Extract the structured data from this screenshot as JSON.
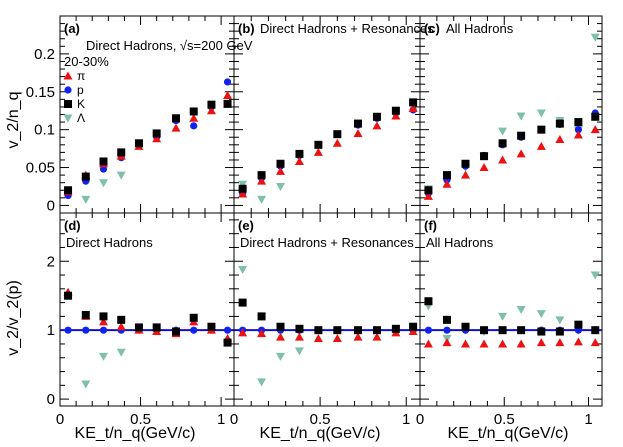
{
  "chart_data": {
    "type": "scatter",
    "title": "Direct Hadrons, √s=200 GeV",
    "centrality": "20-30%",
    "xlabel": "KE_t/n_q(GeV/c)",
    "ylabel_top": "v_2/n_q",
    "ylabel_bottom": "v_2/v_2(p)",
    "xlim": [
      0,
      1.08
    ],
    "ylim_top": [
      -0.01,
      0.25
    ],
    "ylim_bottom": [
      -0.1,
      2.7
    ],
    "xticks": [
      "0",
      "0.5",
      "1"
    ],
    "yticks_top": [
      "0",
      "0.05",
      "0.1",
      "0.15",
      "0.2"
    ],
    "yticks_bottom": [
      "0",
      "1",
      "2"
    ],
    "reference_line": 1,
    "colors": {
      "pi": "#ee1111",
      "p": "#1122ee",
      "K": "#000000",
      "Lambda": "#7fbfae",
      "refline": "#1010cc"
    },
    "legend": [
      {
        "key": "pi",
        "label": "π",
        "marker": "triangle"
      },
      {
        "key": "p",
        "label": "p",
        "marker": "circle"
      },
      {
        "key": "K",
        "label": "K",
        "marker": "square"
      },
      {
        "key": "Lambda",
        "label": "Λ",
        "marker": "triangle-down"
      }
    ],
    "panels": [
      {
        "label": "(a)",
        "title": "",
        "row": "top",
        "col": 0,
        "series": {
          "pi": {
            "x": [
              0.05,
              0.16,
              0.27,
              0.38,
              0.49,
              0.6,
              0.72,
              0.83,
              0.94,
              1.04
            ],
            "y": [
              0.018,
              0.04,
              0.055,
              0.065,
              0.078,
              0.088,
              0.102,
              0.115,
              0.125,
              0.145
            ]
          },
          "p": {
            "x": [
              0.05,
              0.16,
              0.27,
              0.38,
              0.49,
              0.6,
              0.72,
              0.83,
              0.94,
              1.04
            ],
            "y": [
              0.013,
              0.032,
              0.048,
              0.063,
              0.082,
              0.09,
              0.112,
              0.105,
              0.13,
              0.163
            ]
          },
          "K": {
            "x": [
              0.05,
              0.16,
              0.27,
              0.38,
              0.49,
              0.6,
              0.72,
              0.83,
              0.94,
              1.04
            ],
            "y": [
              0.02,
              0.038,
              0.058,
              0.07,
              0.082,
              0.095,
              0.115,
              0.124,
              0.133,
              0.134
            ]
          },
          "Lambda": {
            "x": [
              0.16,
              0.27,
              0.38
            ],
            "y": [
              0.008,
              0.03,
              0.04
            ]
          }
        }
      },
      {
        "label": "(b)",
        "title": "Direct Hadrons + Resonances",
        "row": "top",
        "col": 1,
        "series": {
          "pi": {
            "x": [
              0.05,
              0.16,
              0.27,
              0.38,
              0.49,
              0.6,
              0.72,
              0.83,
              0.94,
              1.04
            ],
            "y": [
              0.015,
              0.032,
              0.045,
              0.058,
              0.07,
              0.082,
              0.095,
              0.105,
              0.118,
              0.128
            ]
          },
          "p": {
            "x": [
              0.05,
              0.16,
              0.27,
              0.38,
              0.49,
              0.6,
              0.72,
              0.83,
              0.94,
              1.04
            ],
            "y": [
              0.016,
              0.036,
              0.052,
              0.066,
              0.08,
              0.094,
              0.106,
              0.115,
              0.122,
              0.126
            ]
          },
          "K": {
            "x": [
              0.05,
              0.16,
              0.27,
              0.38,
              0.49,
              0.6,
              0.72,
              0.83,
              0.94,
              1.04
            ],
            "y": [
              0.022,
              0.04,
              0.055,
              0.068,
              0.08,
              0.094,
              0.108,
              0.117,
              0.125,
              0.136
            ]
          },
          "Lambda": {
            "x": [
              0.05,
              0.16,
              0.27
            ],
            "y": [
              0.028,
              0.008,
              0.025
            ]
          }
        }
      },
      {
        "label": "(c)",
        "title": "All Hadrons",
        "row": "top",
        "col": 2,
        "series": {
          "pi": {
            "x": [
              0.05,
              0.16,
              0.27,
              0.38,
              0.49,
              0.6,
              0.72,
              0.83,
              0.94,
              1.04
            ],
            "y": [
              0.012,
              0.028,
              0.04,
              0.05,
              0.06,
              0.068,
              0.078,
              0.087,
              0.093,
              0.1
            ]
          },
          "p": {
            "x": [
              0.05,
              0.16,
              0.27,
              0.38,
              0.49,
              0.6,
              0.72,
              0.83,
              0.94,
              1.04
            ],
            "y": [
              0.016,
              0.034,
              0.052,
              0.066,
              0.08,
              0.09,
              0.1,
              0.107,
              0.1,
              0.122
            ]
          },
          "K": {
            "x": [
              0.05,
              0.16,
              0.27,
              0.38,
              0.49,
              0.6,
              0.72,
              0.83,
              0.94,
              1.04
            ],
            "y": [
              0.02,
              0.04,
              0.055,
              0.065,
              0.082,
              0.092,
              0.1,
              0.108,
              0.11,
              0.117
            ]
          },
          "Lambda": {
            "x": [
              0.05,
              0.16,
              0.27,
              0.38,
              0.49,
              0.6,
              0.72,
              0.83,
              0.94,
              1.04
            ],
            "y": [
              0.022,
              0.03,
              0.05,
              0.065,
              0.098,
              0.118,
              0.122,
              0.112,
              0.1,
              0.222
            ]
          }
        }
      },
      {
        "label": "(d)",
        "title": "Direct Hadrons",
        "row": "bottom",
        "col": 0,
        "series": {
          "pi": {
            "x": [
              0.05,
              0.16,
              0.27,
              0.38,
              0.49,
              0.6,
              0.72,
              0.83,
              0.94,
              1.04
            ],
            "y": [
              1.55,
              1.2,
              1.12,
              1.05,
              1.0,
              0.98,
              0.95,
              1.12,
              1.0,
              0.88
            ]
          },
          "p": {
            "x": [
              0.05,
              0.16,
              0.27,
              0.38,
              0.49,
              0.6,
              0.72,
              0.83,
              0.94,
              1.04
            ],
            "y": [
              1,
              1,
              1,
              1,
              1,
              1,
              1,
              1,
              1,
              1
            ]
          },
          "K": {
            "x": [
              0.05,
              0.16,
              0.27,
              0.38,
              0.49,
              0.6,
              0.72,
              0.83,
              0.94,
              1.04
            ],
            "y": [
              1.5,
              1.22,
              1.2,
              1.15,
              1.04,
              1.04,
              0.98,
              1.18,
              1.05,
              0.82
            ]
          },
          "Lambda": {
            "x": [
              0.16,
              0.27,
              0.38
            ],
            "y": [
              0.22,
              0.62,
              0.68
            ]
          }
        }
      },
      {
        "label": "(e)",
        "title": "Direct Hadrons + Resonances",
        "row": "bottom",
        "col": 1,
        "series": {
          "pi": {
            "x": [
              0.05,
              0.16,
              0.27,
              0.38,
              0.49,
              0.6,
              0.72,
              0.83,
              0.94,
              1.04
            ],
            "y": [
              0.96,
              0.95,
              0.9,
              0.9,
              0.88,
              0.88,
              0.9,
              0.9,
              0.96,
              0.98
            ]
          },
          "p": {
            "x": [
              0.05,
              0.16,
              0.27,
              0.38,
              0.49,
              0.6,
              0.72,
              0.83,
              0.94,
              1.04
            ],
            "y": [
              1,
              1,
              1,
              1,
              1,
              1,
              1,
              1,
              1,
              1
            ]
          },
          "K": {
            "x": [
              0.05,
              0.16,
              0.27,
              0.38,
              0.49,
              0.6,
              0.72,
              0.83,
              0.94,
              1.04
            ],
            "y": [
              1.4,
              1.2,
              1.05,
              1.02,
              1.0,
              1.0,
              1.0,
              1.0,
              1.02,
              1.05
            ]
          },
          "Lambda": {
            "x": [
              0.05,
              0.16,
              0.27,
              0.38
            ],
            "y": [
              1.88,
              0.25,
              0.62,
              0.7
            ]
          }
        }
      },
      {
        "label": "(f)",
        "title": "All Hadrons",
        "row": "bottom",
        "col": 2,
        "series": {
          "pi": {
            "x": [
              0.05,
              0.16,
              0.27,
              0.38,
              0.49,
              0.6,
              0.72,
              0.83,
              0.94,
              1.04
            ],
            "y": [
              0.8,
              0.82,
              0.8,
              0.8,
              0.8,
              0.8,
              0.82,
              0.82,
              0.83,
              0.82
            ]
          },
          "p": {
            "x": [
              0.05,
              0.16,
              0.27,
              0.38,
              0.49,
              0.6,
              0.72,
              0.83,
              0.94,
              1.04
            ],
            "y": [
              1,
              1,
              1,
              1,
              1,
              1,
              1,
              1,
              1,
              1
            ]
          },
          "K": {
            "x": [
              0.05,
              0.16,
              0.27,
              0.38,
              0.49,
              0.6,
              0.72,
              0.83,
              0.94,
              1.04
            ],
            "y": [
              1.42,
              1.15,
              1.05,
              1.0,
              1.0,
              1.0,
              0.98,
              0.98,
              1.08,
              1.0
            ]
          },
          "Lambda": {
            "x": [
              0.05,
              0.16,
              0.27,
              0.38,
              0.49,
              0.6,
              0.72,
              0.83,
              0.94,
              1.04
            ],
            "y": [
              1.35,
              0.88,
              1.0,
              0.98,
              1.2,
              1.3,
              1.24,
              1.15,
              1.0,
              1.8
            ]
          }
        }
      }
    ]
  }
}
